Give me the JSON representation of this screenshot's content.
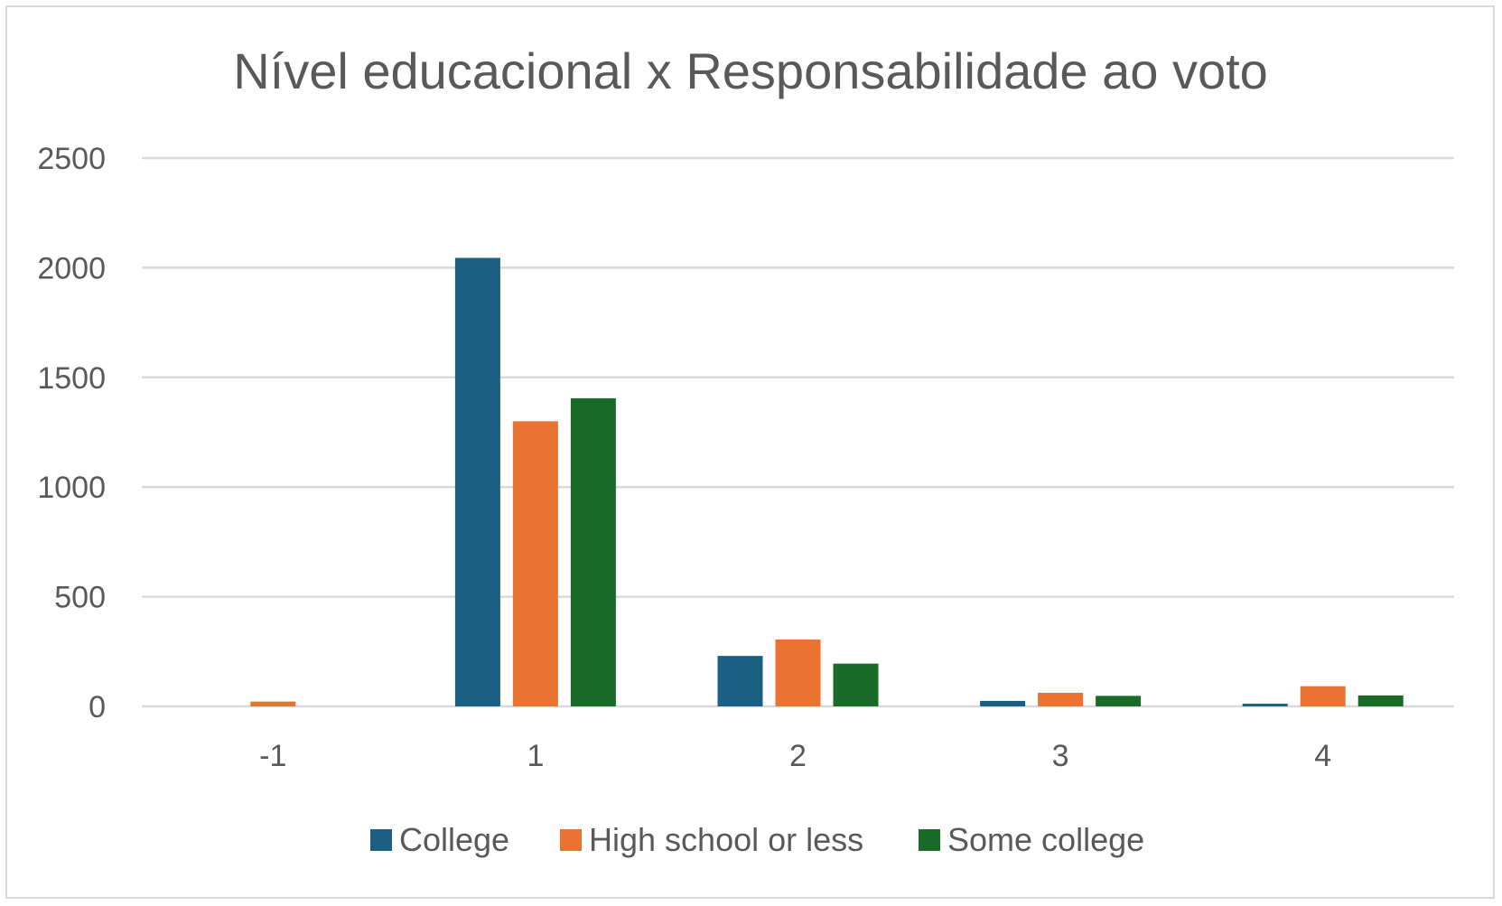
{
  "chart_data": {
    "type": "bar",
    "title": "Nível educacional x Responsabilidade ao voto",
    "xlabel": "",
    "ylabel": "",
    "categories": [
      "-1",
      "1",
      "2",
      "3",
      "4"
    ],
    "series": [
      {
        "name": "College",
        "color": "#1b5f82",
        "values": [
          0,
          2045,
          230,
          25,
          12
        ]
      },
      {
        "name": "High school or less",
        "color": "#e97432",
        "values": [
          22,
          1300,
          305,
          62,
          92
        ]
      },
      {
        "name": "Some college",
        "color": "#1a6b27",
        "values": [
          0,
          1405,
          195,
          48,
          50
        ]
      }
    ],
    "ylim": [
      0,
      2500
    ],
    "yticks": [
      0,
      500,
      1000,
      1500,
      2000,
      2500
    ],
    "grid": true,
    "legend": "bottom"
  }
}
